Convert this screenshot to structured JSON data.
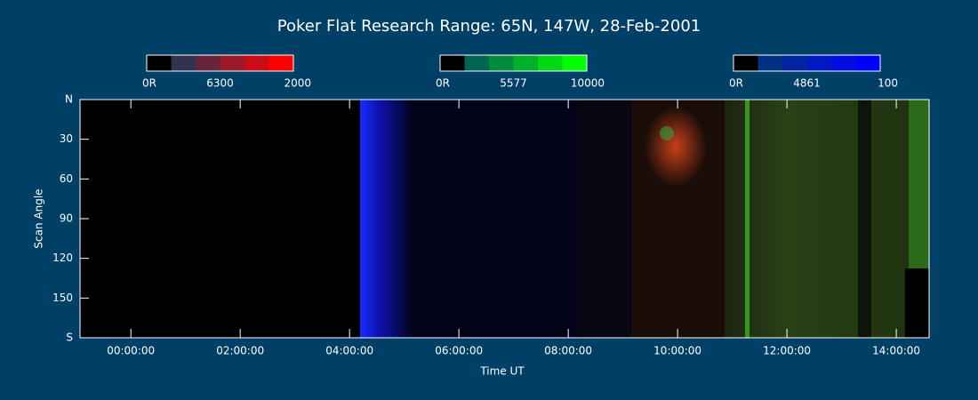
{
  "chart_data": {
    "type": "keogram",
    "title": "Poker Flat Research Range: 65N, 147W, 28-Feb-2001",
    "xlabel": "Time UT",
    "ylabel": "Scan Angle",
    "colorbars": [
      {
        "name": "6300",
        "min_label": "0R",
        "max": 2000,
        "color": "#ff0000"
      },
      {
        "name": "5577",
        "min_label": "0R",
        "max": 10000,
        "color": "#00ff00"
      },
      {
        "name": "4861",
        "min_label": "0R",
        "max": 100,
        "color": "#0000ff"
      }
    ],
    "xlim": [
      -0.93,
      14.6
    ],
    "xticks": [
      {
        "value": 0,
        "label": "00:00:00"
      },
      {
        "value": 2,
        "label": "02:00:00"
      },
      {
        "value": 4,
        "label": "04:00:00"
      },
      {
        "value": 6,
        "label": "06:00:00"
      },
      {
        "value": 8,
        "label": "08:00:00"
      },
      {
        "value": 10,
        "label": "10:00:00"
      },
      {
        "value": 12,
        "label": "12:00:00"
      },
      {
        "value": 14,
        "label": "14:00:00"
      }
    ],
    "ylim": [
      0,
      180
    ],
    "yticks": [
      {
        "value": 0,
        "label": "N"
      },
      30,
      60,
      90,
      120,
      150,
      {
        "value": 180,
        "label": "S"
      }
    ]
  }
}
